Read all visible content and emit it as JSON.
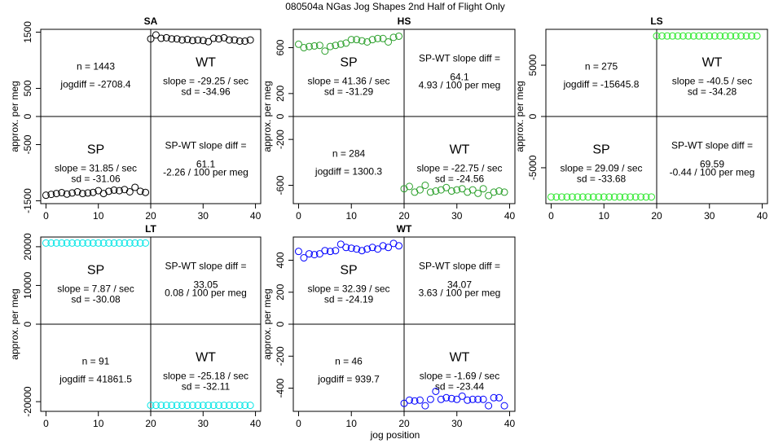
{
  "figure_title": "080504a   NGas Jog Shapes 2nd Half of Flight Only",
  "xlabel": "jog position",
  "chart_data": [
    {
      "type": "scatter",
      "title": "SA",
      "ylabel": "approx. per meg",
      "color": "#000000",
      "xlim": [
        -1,
        41
      ],
      "ylim": [
        -1550,
        1550
      ],
      "xticks": [
        0,
        10,
        20,
        30,
        40
      ],
      "yticks": [
        -1500,
        -500,
        0,
        500,
        1500
      ],
      "sp_x": [
        0,
        1,
        2,
        3,
        4,
        5,
        6,
        7,
        8,
        9,
        10,
        11,
        12,
        13,
        14,
        15,
        16,
        17,
        18,
        19
      ],
      "sp_y": [
        -1400,
        -1385,
        -1370,
        -1355,
        -1380,
        -1360,
        -1340,
        -1370,
        -1360,
        -1350,
        -1320,
        -1370,
        -1330,
        -1310,
        -1320,
        -1300,
        -1340,
        -1260,
        -1330,
        -1350
      ],
      "wt_x": [
        20,
        21,
        22,
        23,
        24,
        25,
        26,
        27,
        28,
        29,
        30,
        31,
        32,
        33,
        34,
        35,
        36,
        37,
        38,
        39
      ],
      "wt_y": [
        1380,
        1450,
        1390,
        1400,
        1380,
        1380,
        1360,
        1370,
        1350,
        1360,
        1350,
        1330,
        1390,
        1380,
        1400,
        1360,
        1360,
        1340,
        1340,
        1360
      ],
      "quad_tl": {
        "line1": "n = 1443",
        "line2": "jogdiff = -2708.4"
      },
      "quad_tr": {
        "big": "WT",
        "line1": "slope = -29.25 / sec",
        "line2": "sd = -34.96"
      },
      "quad_bl": {
        "big": "SP",
        "line1": "slope = 31.85 / sec",
        "line2": "sd = -31.06"
      },
      "quad_br": {
        "line1": "SP-WT slope diff =",
        "line2": "61.1",
        "line3": "-2.26 / 100 per meg"
      }
    },
    {
      "type": "scatter",
      "title": "HS",
      "ylabel": "approx. per meg",
      "color": "#2ca02c",
      "xlim": [
        -1,
        41
      ],
      "ylim": [
        -760,
        760
      ],
      "xticks": [
        0,
        10,
        20,
        30,
        40
      ],
      "yticks": [
        -600,
        -200,
        0,
        200,
        600
      ],
      "sp_x": [
        0,
        1,
        2,
        3,
        4,
        5,
        6,
        7,
        8,
        9,
        10,
        11,
        12,
        13,
        14,
        15,
        16,
        17,
        18,
        19
      ],
      "sp_y": [
        630,
        600,
        610,
        615,
        620,
        570,
        610,
        620,
        630,
        640,
        670,
        670,
        660,
        650,
        670,
        680,
        680,
        650,
        690,
        700
      ],
      "wt_x": [
        20,
        21,
        22,
        23,
        24,
        25,
        26,
        27,
        28,
        29,
        30,
        31,
        32,
        33,
        34,
        35,
        36,
        37,
        38,
        39
      ],
      "wt_y": [
        -630,
        -610,
        -660,
        -640,
        -600,
        -660,
        -650,
        -640,
        -620,
        -650,
        -640,
        -630,
        -660,
        -640,
        -670,
        -630,
        -690,
        -660,
        -650,
        -660
      ],
      "quad_tl": {
        "big": "SP",
        "line1": "slope = 41.36 / sec",
        "line2": "sd = -31.29"
      },
      "quad_tr": {
        "line1": "SP-WT slope diff =",
        "line2": "64.1",
        "line3": "4.93 / 100 per meg"
      },
      "quad_bl": {
        "line1": "n = 284",
        "line2": "jogdiff = 1300.3"
      },
      "quad_br": {
        "big": "WT",
        "line1": "slope = -22.75 / sec",
        "line2": "sd = -24.56"
      }
    },
    {
      "type": "scatter",
      "title": "LS",
      "ylabel": "approx. per meg",
      "color": "#2ee82e",
      "xlim": [
        -1,
        41
      ],
      "ylim": [
        -8500,
        8500
      ],
      "xticks": [
        0,
        10,
        20,
        30,
        40
      ],
      "yticks": [
        -5000,
        0,
        5000
      ],
      "sp_x": [
        0,
        1,
        2,
        3,
        4,
        5,
        6,
        7,
        8,
        9,
        10,
        11,
        12,
        13,
        14,
        15,
        16,
        17,
        18,
        19
      ],
      "sp_y": [
        -7850,
        -7850,
        -7850,
        -7850,
        -7850,
        -7850,
        -7850,
        -7850,
        -7850,
        -7850,
        -7850,
        -7850,
        -7850,
        -7850,
        -7850,
        -7850,
        -7850,
        -7850,
        -7850,
        -7850
      ],
      "wt_x": [
        20,
        21,
        22,
        23,
        24,
        25,
        26,
        27,
        28,
        29,
        30,
        31,
        32,
        33,
        34,
        35,
        36,
        37,
        38,
        39
      ],
      "wt_y": [
        7850,
        7850,
        7850,
        7850,
        7850,
        7850,
        7850,
        7850,
        7850,
        7850,
        7850,
        7850,
        7850,
        7850,
        7850,
        7850,
        7850,
        7850,
        7850,
        7850
      ],
      "quad_tl": {
        "line1": "n = 275",
        "line2": "jogdiff = -15645.8"
      },
      "quad_tr": {
        "big": "WT",
        "line1": "slope = -40.5 / sec",
        "line2": "sd = -34.28"
      },
      "quad_bl": {
        "big": "SP",
        "line1": "slope = 29.09 / sec",
        "line2": "sd = -33.68"
      },
      "quad_br": {
        "line1": "SP-WT slope diff =",
        "line2": "69.59",
        "line3": "-0.44 / 100 per meg"
      }
    },
    {
      "type": "scatter",
      "title": "LT",
      "ylabel": "approx. per meg",
      "color": "#00e5e5",
      "xlim": [
        -1,
        41
      ],
      "ylim": [
        -22500,
        22500
      ],
      "xticks": [
        0,
        10,
        20,
        30,
        40
      ],
      "yticks": [
        -20000,
        0,
        10000,
        20000
      ],
      "sp_x": [
        0,
        1,
        2,
        3,
        4,
        5,
        6,
        7,
        8,
        9,
        10,
        11,
        12,
        13,
        14,
        15,
        16,
        17,
        18,
        19
      ],
      "sp_y": [
        20950,
        20950,
        20950,
        20950,
        20950,
        20950,
        20950,
        20950,
        20950,
        20950,
        20950,
        20950,
        20950,
        20950,
        20950,
        20950,
        20950,
        20950,
        20950,
        20950
      ],
      "wt_x": [
        20,
        21,
        22,
        23,
        24,
        25,
        26,
        27,
        28,
        29,
        30,
        31,
        32,
        33,
        34,
        35,
        36,
        37,
        38,
        39
      ],
      "wt_y": [
        -20950,
        -20950,
        -20950,
        -20950,
        -20950,
        -20950,
        -20950,
        -20950,
        -20950,
        -20950,
        -20950,
        -20950,
        -20950,
        -20950,
        -20950,
        -20950,
        -20950,
        -20950,
        -20950,
        -20950
      ],
      "quad_tl": {
        "big": "SP",
        "line1": "slope = 7.87 / sec",
        "line2": "sd = -30.08"
      },
      "quad_tr": {
        "line1": "SP-WT slope diff =",
        "line2": "33.05",
        "line3": "0.08 / 100 per meg"
      },
      "quad_bl": {
        "line1": "n = 91",
        "line2": "jogdiff = 41861.5"
      },
      "quad_br": {
        "big": "WT",
        "line1": "slope = -25.18 / sec",
        "line2": "sd = -32.11"
      }
    },
    {
      "type": "scatter",
      "title": "WT",
      "ylabel": "approx. per meg",
      "color": "#0000ff",
      "xlim": [
        -1,
        41
      ],
      "ylim": [
        -545,
        545
      ],
      "xticks": [
        0,
        10,
        20,
        30,
        40
      ],
      "yticks": [
        -400,
        -200,
        0,
        200,
        400
      ],
      "sp_x": [
        0,
        1,
        2,
        3,
        4,
        5,
        6,
        7,
        8,
        9,
        10,
        11,
        12,
        13,
        14,
        15,
        16,
        17,
        18,
        19
      ],
      "sp_y": [
        455,
        415,
        440,
        435,
        440,
        460,
        455,
        460,
        500,
        480,
        475,
        470,
        460,
        470,
        480,
        470,
        490,
        480,
        505,
        490
      ],
      "wt_x": [
        20,
        21,
        22,
        23,
        24,
        25,
        26,
        27,
        28,
        29,
        30,
        31,
        32,
        33,
        34,
        35,
        36,
        37,
        38,
        39
      ],
      "wt_y": [
        -495,
        -475,
        -480,
        -475,
        -510,
        -470,
        -420,
        -470,
        -460,
        -465,
        -470,
        -450,
        -475,
        -470,
        -470,
        -470,
        -510,
        -460,
        -460,
        -510
      ],
      "quad_tl": {
        "big": "SP",
        "line1": "slope = 32.39 / sec",
        "line2": "sd = -24.19"
      },
      "quad_tr": {
        "line1": "SP-WT slope diff =",
        "line2": "34.07",
        "line3": "3.63 / 100 per meg"
      },
      "quad_bl": {
        "line1": "n = 46",
        "line2": "jogdiff = 939.7"
      },
      "quad_br": {
        "big": "WT",
        "line1": "slope = -1.69 / sec",
        "line2": "sd = -23.44"
      }
    }
  ]
}
